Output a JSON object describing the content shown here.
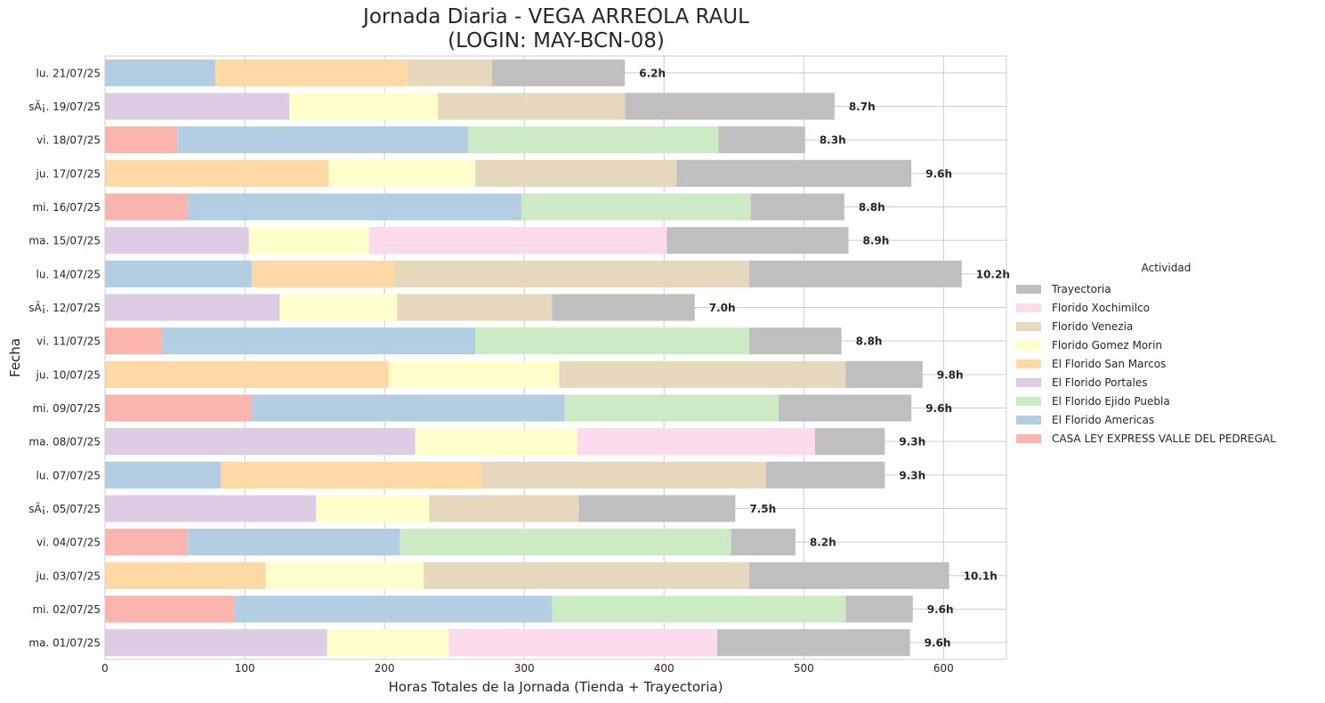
{
  "chart_data": {
    "type": "bar",
    "orientation": "horizontal",
    "stacked": true,
    "title": "Jornada Diaria - VEGA ARREOLA RAUL",
    "subtitle": "(LOGIN: MAY-BCN-08)",
    "xlabel": "Horas Totales de la Jornada (Tienda + Trayectoria)",
    "ylabel": "Fecha",
    "xlim": [
      0,
      645
    ],
    "xticks": [
      0,
      100,
      200,
      300,
      400,
      500,
      600
    ],
    "grid": true,
    "legend_title": "Actividad",
    "legend_position": "right",
    "legend_order": [
      "Trayectoria",
      "Florido Xochimilco",
      "Florido Venezia",
      "Florido Gomez Morin",
      "El Florido San Marcos",
      "El Florido Portales",
      "El Florido Ejido Puebla",
      "El Florido Americas",
      "CASA LEY EXPRESS VALLE DEL PEDREGAL"
    ],
    "colors": {
      "CASA LEY EXPRESS VALLE DEL PEDREGAL": "#fbb4ae",
      "El Florido Americas": "#b3cde3",
      "El Florido Ejido Puebla": "#ccebc5",
      "El Florido Portales": "#decbe4",
      "El Florido San Marcos": "#fed9a6",
      "Florido Gomez Morin": "#ffffcc",
      "Florido Venezia": "#e5d8bd",
      "Florido Xochimilco": "#fddaec",
      "Trayectoria": "#bfbfbf"
    },
    "categories": [
      "lu. 21/07/25",
      "sÃ¡. 19/07/25",
      "vi. 18/07/25",
      "ju. 17/07/25",
      "mi. 16/07/25",
      "ma. 15/07/25",
      "lu. 14/07/25",
      "sÃ¡. 12/07/25",
      "vi. 11/07/25",
      "ju. 10/07/25",
      "mi. 09/07/25",
      "ma. 08/07/25",
      "lu. 07/07/25",
      "sÃ¡. 05/07/25",
      "vi. 04/07/25",
      "ju. 03/07/25",
      "mi. 02/07/25",
      "ma. 01/07/25"
    ],
    "series": [
      {
        "name": "CASA LEY EXPRESS VALLE DEL PEDREGAL",
        "values": [
          0,
          0,
          52,
          0,
          59,
          0,
          0,
          0,
          41,
          0,
          105,
          0,
          0,
          0,
          59,
          0,
          93,
          0
        ]
      },
      {
        "name": "El Florido Americas",
        "values": [
          79,
          0,
          208,
          0,
          239,
          0,
          105,
          0,
          224,
          0,
          224,
          0,
          83,
          0,
          152,
          0,
          227,
          0
        ]
      },
      {
        "name": "El Florido Ejido Puebla",
        "values": [
          0,
          0,
          179,
          0,
          164,
          0,
          0,
          0,
          196,
          0,
          153,
          0,
          0,
          0,
          237,
          0,
          210,
          0
        ]
      },
      {
        "name": "El Florido Portales",
        "values": [
          0,
          132,
          0,
          0,
          0,
          103,
          0,
          125,
          0,
          0,
          0,
          222,
          0,
          151,
          0,
          0,
          0,
          159
        ]
      },
      {
        "name": "El Florido San Marcos",
        "values": [
          138,
          0,
          0,
          160,
          0,
          0,
          102,
          0,
          0,
          203,
          0,
          0,
          187,
          0,
          0,
          115,
          0,
          0
        ]
      },
      {
        "name": "Florido Gomez Morin",
        "values": [
          0,
          106,
          0,
          105,
          0,
          86,
          0,
          84,
          0,
          122,
          0,
          116,
          0,
          81,
          0,
          113,
          0,
          87
        ]
      },
      {
        "name": "Florido Venezia",
        "values": [
          60,
          134,
          0,
          144,
          0,
          0,
          254,
          111,
          0,
          205,
          0,
          0,
          203,
          107,
          0,
          233,
          0,
          0
        ]
      },
      {
        "name": "Florido Xochimilco",
        "values": [
          0,
          0,
          0,
          0,
          0,
          213,
          0,
          0,
          0,
          0,
          0,
          170,
          0,
          0,
          0,
          0,
          0,
          192
        ]
      },
      {
        "name": "Trayectoria",
        "values": [
          95,
          150,
          62,
          168,
          67,
          130,
          152,
          102,
          66,
          55,
          95,
          50,
          85,
          112,
          46,
          143,
          48,
          138
        ]
      }
    ],
    "totals_labels": [
      "6.2h",
      "8.7h",
      "8.3h",
      "9.6h",
      "8.8h",
      "8.9h",
      "10.2h",
      "7.0h",
      "8.8h",
      "9.8h",
      "9.6h",
      "9.3h",
      "9.3h",
      "7.5h",
      "8.2h",
      "10.1h",
      "9.6h",
      "9.6h"
    ]
  }
}
